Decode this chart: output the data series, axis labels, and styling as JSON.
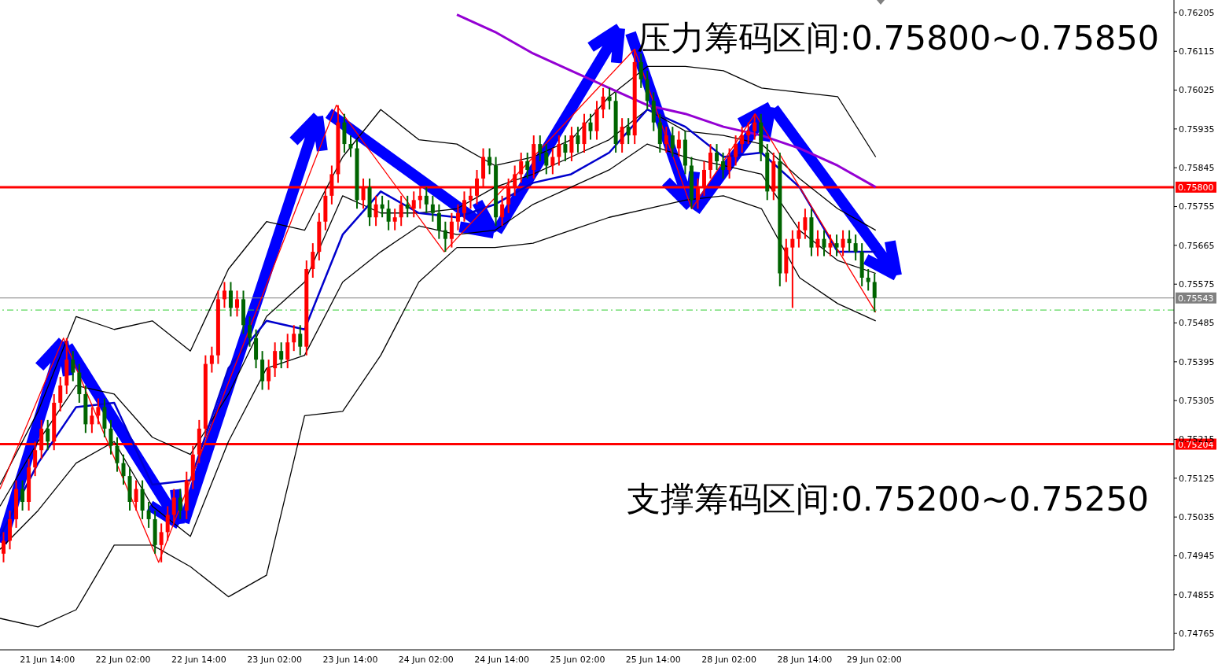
{
  "chart_data": {
    "type": "candlestick",
    "categories": [
      null,
      null,
      null,
      null,
      null,
      null,
      null,
      "21 Jun 14:00",
      null,
      null,
      null,
      null,
      null,
      null,
      null,
      null,
      null,
      null,
      null,
      "22 Jun 02:00",
      null,
      null,
      null,
      null,
      null,
      null,
      null,
      null,
      null,
      null,
      null,
      "22 Jun 14:00",
      null,
      null,
      null,
      null,
      null,
      null,
      null,
      null,
      null,
      null,
      null,
      "23 Jun 02:00",
      null,
      null,
      null,
      null,
      null,
      null,
      null,
      null,
      null,
      null,
      null,
      "23 Jun 14:00",
      null,
      null,
      null,
      null,
      null,
      null,
      null,
      null,
      null,
      null,
      null,
      "24 Jun 02:00",
      null,
      null,
      null,
      null,
      null,
      null,
      null,
      null,
      null,
      null,
      null,
      "24 Jun 14:00",
      null,
      null,
      null,
      null,
      null,
      null,
      null,
      null,
      null,
      null,
      null,
      "25 Jun 02:00",
      null,
      null,
      null,
      null,
      null,
      null,
      null,
      null,
      null,
      null,
      null,
      "25 Jun 14:00",
      null,
      null,
      null,
      null,
      null,
      null,
      null,
      null,
      null,
      null,
      null,
      "28 Jun 02:00",
      null,
      null,
      null,
      null,
      null,
      null,
      null,
      null,
      null,
      null,
      null,
      "28 Jun 14:00",
      null,
      null,
      null,
      null,
      null,
      null,
      null,
      null,
      null,
      null,
      "29 Jun 02:00",
      null,
      null,
      null,
      null,
      null,
      null,
      null,
      null,
      null,
      null,
      null,
      null,
      null,
      null,
      null,
      null,
      null,
      null,
      null,
      null,
      null,
      null,
      null,
      null,
      null,
      null,
      null,
      null,
      null,
      null,
      null,
      null,
      null,
      null,
      null,
      null,
      null,
      null,
      null,
      null,
      null,
      null,
      null,
      null,
      null,
      null,
      null
    ],
    "colors": [
      "#ff0000",
      "#ff0000",
      "#ff0000",
      "#006400",
      "#ff0000",
      "#ff0000",
      "#ff0000",
      "#006400",
      "#ff0000",
      "#ff0000",
      "#ff0000",
      "#006400",
      "#006400",
      "#006400",
      "#ff0000",
      "#ff0000",
      "#006400",
      "#006400",
      "#006400",
      "#006400",
      "#006400",
      "#ff0000",
      "#006400",
      "#006400",
      "#006400",
      "#ff0000",
      "#ff0000",
      "#ff0000",
      "#006400",
      "#ff0000",
      "#ff0000",
      "#ff0000",
      "#ff0000",
      "#ff0000",
      "#ff0000",
      "#ff0000",
      "#006400",
      "#ff0000",
      "#006400",
      "#006400",
      "#006400",
      "#006400",
      "#ff0000",
      "#ff0000",
      "#006400",
      "#ff0000",
      "#ff0000",
      "#006400",
      "#ff0000",
      "#ff0000",
      "#ff0000",
      "#ff0000",
      "#ff0000",
      "#ff0000",
      "#006400",
      "#006400",
      "#006400",
      "#ff0000",
      "#006400",
      "#ff0000",
      "#006400",
      "#006400",
      "#ff0000",
      "#ff0000",
      "#006400",
      "#ff0000",
      "#ff0000",
      "#006400",
      "#006400",
      "#006400",
      "#006400",
      "#ff0000",
      "#ff0000",
      "#ff0000",
      "#ff0000",
      "#ff0000",
      "#ff0000",
      "#006400",
      "#006400",
      "#ff0000",
      "#ff0000",
      "#ff0000",
      "#ff0000",
      "#006400",
      "#ff0000",
      "#006400",
      "#006400",
      "#ff0000",
      "#ff0000",
      "#006400",
      "#ff0000",
      "#006400",
      "#ff0000",
      "#006400",
      "#ff0000",
      "#ff0000",
      "#006400",
      "#006400",
      "#ff0000",
      "#006400",
      "#ff0000",
      "#006400",
      "#006400",
      "#006400",
      "#006400",
      "#ff0000",
      "#006400",
      "#ff0000",
      "#006400",
      "#006400",
      "#ff0000",
      "#ff0000",
      "#ff0000",
      "#006400",
      "#006400",
      "#ff0000",
      "#ff0000",
      "#ff0000",
      "#ff0000",
      "#ff0000",
      "#006400",
      "#006400",
      "#ff0000",
      "#006400",
      "#ff0000",
      "#ff0000",
      "#ff0000",
      "#ff0000",
      "#006400",
      "#ff0000",
      "#006400",
      "#ff0000",
      "#006400",
      "#ff0000",
      "#006400",
      "#006400",
      "#006400",
      "#006400",
      "#006400",
      null,
      null,
      null,
      null,
      null,
      null,
      null,
      null,
      null,
      null,
      null,
      null,
      null,
      null,
      null,
      null,
      null,
      null,
      null,
      null,
      null,
      null,
      null,
      null,
      null,
      null,
      null,
      null,
      null,
      null,
      null,
      null,
      null,
      null,
      null,
      null,
      null,
      null,
      null,
      null,
      null,
      null,
      null,
      null,
      null,
      null,
      null
    ],
    "ohlc": [
      [
        0.7495,
        0.75,
        0.7493,
        0.7498
      ],
      [
        0.7498,
        0.7505,
        0.7496,
        0.7503
      ],
      [
        0.7503,
        0.7512,
        0.7501,
        0.751
      ],
      [
        0.751,
        0.7512,
        0.7505,
        0.7507
      ],
      [
        0.7507,
        0.7517,
        0.7505,
        0.7515
      ],
      [
        0.7515,
        0.7521,
        0.7513,
        0.7519
      ],
      [
        0.7519,
        0.7526,
        0.7517,
        0.7524
      ],
      [
        0.7524,
        0.7526,
        0.7519,
        0.7521
      ],
      [
        0.7521,
        0.7532,
        0.7519,
        0.753
      ],
      [
        0.753,
        0.7536,
        0.7528,
        0.7534
      ],
      [
        0.7534,
        0.7545,
        0.7532,
        0.754
      ],
      [
        0.754,
        0.7542,
        0.7535,
        0.7537
      ],
      [
        0.7537,
        0.7539,
        0.753,
        0.7532
      ],
      [
        0.7532,
        0.7534,
        0.7523,
        0.7525
      ],
      [
        0.7525,
        0.7529,
        0.7523,
        0.7527
      ],
      [
        0.7527,
        0.7531,
        0.7525,
        0.7529
      ],
      [
        0.7529,
        0.7531,
        0.7522,
        0.7524
      ],
      [
        0.7524,
        0.7526,
        0.7518,
        0.752
      ],
      [
        0.752,
        0.7522,
        0.7514,
        0.7516
      ],
      [
        0.7516,
        0.7518,
        0.7511,
        0.7513
      ],
      [
        0.7513,
        0.7515,
        0.7505,
        0.7507
      ],
      [
        0.7507,
        0.7512,
        0.7505,
        0.751
      ],
      [
        0.751,
        0.7512,
        0.7503,
        0.7505
      ],
      [
        0.7505,
        0.7507,
        0.7501,
        0.7503
      ],
      [
        0.7503,
        0.7505,
        0.7495,
        0.7497
      ],
      [
        0.7497,
        0.7502,
        0.7493,
        0.75
      ],
      [
        0.75,
        0.7506,
        0.7498,
        0.7504
      ],
      [
        0.7504,
        0.751,
        0.7502,
        0.7508
      ],
      [
        0.7508,
        0.751,
        0.7503,
        0.7505
      ],
      [
        0.7505,
        0.7514,
        0.7503,
        0.7512
      ],
      [
        0.7512,
        0.752,
        0.751,
        0.7518
      ],
      [
        0.7518,
        0.7526,
        0.7516,
        0.7524
      ],
      [
        0.7524,
        0.7541,
        0.7522,
        0.7539
      ],
      [
        0.7539,
        0.7543,
        0.7537,
        0.7541
      ],
      [
        0.7541,
        0.7556,
        0.7539,
        0.7554
      ],
      [
        0.7554,
        0.7558,
        0.7552,
        0.7556
      ],
      [
        0.7556,
        0.7558,
        0.755,
        0.7552
      ],
      [
        0.7552,
        0.7556,
        0.755,
        0.7554
      ],
      [
        0.7554,
        0.7556,
        0.7546,
        0.7548
      ],
      [
        0.7548,
        0.755,
        0.7543,
        0.7545
      ],
      [
        0.7545,
        0.7547,
        0.7538,
        0.754
      ],
      [
        0.754,
        0.7542,
        0.7533,
        0.7535
      ],
      [
        0.7535,
        0.754,
        0.7533,
        0.7538
      ],
      [
        0.7538,
        0.7544,
        0.7536,
        0.7542
      ],
      [
        0.7542,
        0.7544,
        0.7538,
        0.754
      ],
      [
        0.754,
        0.7546,
        0.7538,
        0.7544
      ],
      [
        0.7544,
        0.7548,
        0.7542,
        0.7546
      ],
      [
        0.7546,
        0.7548,
        0.7541,
        0.7543
      ],
      [
        0.7543,
        0.7563,
        0.7541,
        0.7561
      ],
      [
        0.7561,
        0.7567,
        0.7559,
        0.7565
      ],
      [
        0.7565,
        0.7574,
        0.7563,
        0.7572
      ],
      [
        0.7572,
        0.758,
        0.757,
        0.7578
      ],
      [
        0.7578,
        0.7585,
        0.7576,
        0.7583
      ],
      [
        0.7583,
        0.7599,
        0.7581,
        0.7595
      ],
      [
        0.7595,
        0.7597,
        0.7588,
        0.759
      ],
      [
        0.759,
        0.7592,
        0.7587,
        0.7589
      ],
      [
        0.7589,
        0.7591,
        0.7575,
        0.7577
      ],
      [
        0.7577,
        0.7582,
        0.7575,
        0.758
      ],
      [
        0.758,
        0.7582,
        0.7571,
        0.7573
      ],
      [
        0.7573,
        0.7578,
        0.7571,
        0.7576
      ],
      [
        0.7576,
        0.7578,
        0.7573,
        0.7575
      ],
      [
        0.7575,
        0.7577,
        0.757,
        0.7572
      ],
      [
        0.7572,
        0.7575,
        0.757,
        0.7573
      ],
      [
        0.7573,
        0.7578,
        0.7571,
        0.7576
      ],
      [
        0.7576,
        0.7578,
        0.7573,
        0.7575
      ],
      [
        0.7575,
        0.7579,
        0.7573,
        0.7577
      ],
      [
        0.7577,
        0.758,
        0.7575,
        0.7578
      ],
      [
        0.7578,
        0.758,
        0.7574,
        0.7576
      ],
      [
        0.7576,
        0.7578,
        0.7572,
        0.7574
      ],
      [
        0.7574,
        0.7576,
        0.7568,
        0.757
      ],
      [
        0.757,
        0.7572,
        0.7565,
        0.7568
      ],
      [
        0.7568,
        0.7574,
        0.7566,
        0.7572
      ],
      [
        0.7572,
        0.7576,
        0.757,
        0.7574
      ],
      [
        0.7574,
        0.7579,
        0.7572,
        0.7577
      ],
      [
        0.7577,
        0.758,
        0.7575,
        0.7578
      ],
      [
        0.7578,
        0.7584,
        0.7576,
        0.7582
      ],
      [
        0.7582,
        0.7589,
        0.758,
        0.7587
      ],
      [
        0.7587,
        0.7589,
        0.7583,
        0.7585
      ],
      [
        0.7585,
        0.7587,
        0.7571,
        0.7573
      ],
      [
        0.7573,
        0.7578,
        0.7571,
        0.7576
      ],
      [
        0.7576,
        0.7582,
        0.7574,
        0.758
      ],
      [
        0.758,
        0.7585,
        0.7578,
        0.7583
      ],
      [
        0.7583,
        0.7588,
        0.7581,
        0.7586
      ],
      [
        0.7586,
        0.7588,
        0.7582,
        0.7584
      ],
      [
        0.7584,
        0.7592,
        0.7582,
        0.759
      ],
      [
        0.759,
        0.7592,
        0.7586,
        0.7588
      ],
      [
        0.7588,
        0.759,
        0.7583,
        0.7585
      ],
      [
        0.7585,
        0.7589,
        0.7583,
        0.7587
      ],
      [
        0.7587,
        0.7592,
        0.7585,
        0.759
      ],
      [
        0.759,
        0.7592,
        0.7586,
        0.7588
      ],
      [
        0.7588,
        0.7594,
        0.7586,
        0.7592
      ],
      [
        0.7592,
        0.7594,
        0.7588,
        0.759
      ],
      [
        0.759,
        0.7597,
        0.7588,
        0.7595
      ],
      [
        0.7595,
        0.7597,
        0.7591,
        0.7593
      ],
      [
        0.7593,
        0.76,
        0.7591,
        0.7598
      ],
      [
        0.7598,
        0.7603,
        0.7596,
        0.7601
      ],
      [
        0.7601,
        0.7603,
        0.7598,
        0.76
      ],
      [
        0.76,
        0.7602,
        0.7588,
        0.759
      ],
      [
        0.759,
        0.7596,
        0.7588,
        0.7594
      ],
      [
        0.7594,
        0.7596,
        0.759,
        0.7592
      ],
      [
        0.7592,
        0.7612,
        0.759,
        0.7609
      ],
      [
        0.7609,
        0.7611,
        0.7603,
        0.7605
      ],
      [
        0.7605,
        0.7607,
        0.7598,
        0.76
      ],
      [
        0.76,
        0.7602,
        0.7593,
        0.7595
      ],
      [
        0.7595,
        0.7597,
        0.7588,
        0.759
      ],
      [
        0.759,
        0.7594,
        0.7588,
        0.7592
      ],
      [
        0.7592,
        0.7594,
        0.7587,
        0.7589
      ],
      [
        0.7589,
        0.7593,
        0.7587,
        0.7591
      ],
      [
        0.7591,
        0.7593,
        0.7583,
        0.7585
      ],
      [
        0.7585,
        0.7587,
        0.7575,
        0.7577
      ],
      [
        0.7577,
        0.7582,
        0.7575,
        0.758
      ],
      [
        0.758,
        0.7586,
        0.7578,
        0.7584
      ],
      [
        0.7584,
        0.759,
        0.7582,
        0.7588
      ],
      [
        0.7588,
        0.759,
        0.7584,
        0.7586
      ],
      [
        0.7586,
        0.7588,
        0.7582,
        0.7584
      ],
      [
        0.7584,
        0.7589,
        0.7582,
        0.7587
      ],
      [
        0.7587,
        0.7592,
        0.7585,
        0.759
      ],
      [
        0.759,
        0.7594,
        0.7588,
        0.7592
      ],
      [
        0.7592,
        0.7595,
        0.759,
        0.7593
      ],
      [
        0.7593,
        0.7597,
        0.7591,
        0.7595
      ],
      [
        0.7595,
        0.7597,
        0.7586,
        0.7588
      ],
      [
        0.7588,
        0.759,
        0.7577,
        0.7579
      ],
      [
        0.7579,
        0.7588,
        0.7577,
        0.7586
      ],
      [
        0.7586,
        0.7588,
        0.7557,
        0.756
      ],
      [
        0.756,
        0.7568,
        0.7558,
        0.7566
      ],
      [
        0.7566,
        0.757,
        0.7552,
        0.7568
      ],
      [
        0.7568,
        0.7572,
        0.7566,
        0.757
      ],
      [
        0.757,
        0.7575,
        0.7568,
        0.7573
      ],
      [
        0.7573,
        0.7575,
        0.7564,
        0.7566
      ],
      [
        0.7566,
        0.757,
        0.7564,
        0.7568
      ],
      [
        0.7568,
        0.757,
        0.7564,
        0.7566
      ],
      [
        0.7566,
        0.7569,
        0.7564,
        0.7567
      ],
      [
        0.7567,
        0.7569,
        0.7564,
        0.7566
      ],
      [
        0.7566,
        0.757,
        0.7564,
        0.7568
      ],
      [
        0.7568,
        0.757,
        0.7565,
        0.7567
      ],
      [
        0.7567,
        0.7569,
        0.7563,
        0.7565
      ],
      [
        0.7565,
        0.7567,
        0.7557,
        0.7559
      ],
      [
        0.7559,
        0.7561,
        0.7556,
        0.7558
      ],
      [
        0.7558,
        0.756,
        0.7551,
        0.75543
      ],
      null,
      null,
      null,
      null,
      null,
      null,
      null,
      null,
      null,
      null,
      null,
      null,
      null,
      null,
      null,
      null,
      null,
      null,
      null,
      null,
      null,
      null,
      null,
      null,
      null,
      null,
      null,
      null,
      null,
      null,
      null,
      null,
      null,
      null,
      null,
      null,
      null,
      null,
      null,
      null,
      null,
      null,
      null,
      null,
      null,
      null,
      null
    ],
    "series": [
      {
        "type": "line",
        "color": "#000000",
        "values": [
          0.7511,
          null,
          null,
          null,
          null,
          null,
          0.7528,
          null,
          null,
          null,
          null,
          null,
          0.755,
          null,
          null,
          null,
          null,
          null,
          0.7547,
          null,
          null,
          null,
          null,
          null,
          0.7549,
          null,
          null,
          null,
          null,
          null,
          0.7542,
          null,
          null,
          null,
          null,
          null,
          0.7561,
          null,
          null,
          null,
          null,
          null,
          0.7572,
          null,
          null,
          null,
          null,
          null,
          0.757,
          null,
          null,
          null,
          null,
          null,
          0.7587,
          null,
          null,
          null,
          null,
          null,
          0.7598,
          null,
          null,
          null,
          null,
          null,
          0.7591,
          null,
          null,
          null,
          null,
          null,
          0.759,
          null,
          null,
          null,
          null,
          null,
          0.7585,
          null,
          null,
          null,
          null,
          null,
          0.7587,
          null,
          null,
          null,
          null,
          null,
          0.7591,
          null,
          null,
          null,
          null,
          null,
          0.7601,
          null,
          null,
          null,
          null,
          null,
          0.7608,
          null,
          null,
          null,
          null,
          null,
          0.7608,
          null,
          null,
          null,
          null,
          null,
          0.7607,
          null,
          null,
          null,
          null,
          null,
          0.7603,
          null,
          null,
          null,
          null,
          null,
          0.7602,
          null,
          null,
          null,
          null,
          null,
          0.7601,
          null,
          null,
          null,
          null,
          null,
          0.7587,
          null,
          null,
          null,
          null,
          null,
          null,
          null,
          null,
          null,
          null,
          null,
          null,
          null,
          null,
          null,
          null,
          null,
          null,
          null,
          null,
          null,
          null,
          null,
          null,
          null,
          null,
          null,
          null,
          null,
          null,
          null,
          null,
          null,
          null,
          null,
          null,
          null,
          null,
          null,
          null,
          null,
          null,
          null,
          null,
          null,
          null,
          null
        ]
      },
      {
        "type": "line",
        "color": "#000000",
        "values": [
          0.748,
          null,
          null,
          null,
          null,
          null,
          0.7478,
          null,
          null,
          null,
          null,
          null,
          0.7482,
          null,
          null,
          null,
          null,
          null,
          0.7497,
          null,
          null,
          null,
          null,
          null,
          0.7497,
          null,
          null,
          null,
          null,
          null,
          0.7492,
          null,
          null,
          null,
          null,
          null,
          0.7485,
          null,
          null,
          null,
          null,
          null,
          0.749,
          null,
          null,
          null,
          null,
          null,
          0.7527,
          null,
          null,
          null,
          null,
          null,
          0.7528,
          null,
          null,
          null,
          null,
          null,
          0.7541,
          null,
          null,
          null,
          null,
          null,
          0.7558,
          null,
          null,
          null,
          null,
          null,
          0.7566,
          null,
          null,
          null,
          null,
          null,
          0.7566,
          null,
          null,
          null,
          null,
          null,
          0.7567,
          null,
          null,
          null,
          null,
          null,
          0.757,
          null,
          null,
          null,
          null,
          null,
          0.7573,
          null,
          null,
          null,
          null,
          null,
          0.7575,
          null,
          null,
          null,
          null,
          null,
          0.7577,
          null,
          null,
          null,
          null,
          null,
          0.7578,
          null,
          null,
          null,
          null,
          null,
          0.7575,
          null,
          null,
          null,
          null,
          null,
          0.7559,
          null,
          null,
          null,
          null,
          null,
          0.7553,
          null,
          null,
          null,
          null,
          null,
          0.7549,
          null,
          null,
          null,
          null,
          null,
          null,
          null,
          null,
          null,
          null,
          null,
          null,
          null,
          null,
          null,
          null,
          null,
          null,
          null,
          null,
          null,
          null,
          null,
          null,
          null,
          null,
          null,
          null,
          null,
          null,
          null,
          null,
          null,
          null,
          null,
          null,
          null,
          null,
          null,
          null,
          null,
          null,
          null,
          null,
          null,
          null,
          null
        ]
      },
      {
        "type": "line",
        "color": "#000000",
        "values": [
          0.7506,
          null,
          null,
          null,
          null,
          null,
          0.7521,
          null,
          null,
          null,
          null,
          null,
          0.7534,
          null,
          null,
          null,
          null,
          null,
          0.7532,
          null,
          null,
          null,
          null,
          null,
          0.7522,
          null,
          null,
          null,
          null,
          null,
          0.7518,
          null,
          null,
          null,
          null,
          null,
          0.7532,
          null,
          null,
          null,
          null,
          null,
          0.755,
          null,
          null,
          null,
          null,
          null,
          0.7558,
          null,
          null,
          null,
          null,
          null,
          0.7578,
          null,
          null,
          null,
          null,
          null,
          0.7574,
          null,
          null,
          null,
          null,
          null,
          0.7574,
          null,
          null,
          null,
          null,
          null,
          0.7575,
          null,
          null,
          null,
          null,
          null,
          0.758,
          null,
          null,
          null,
          null,
          null,
          0.7583,
          null,
          null,
          null,
          null,
          null,
          0.7587,
          null,
          null,
          null,
          null,
          null,
          0.7591,
          null,
          null,
          null,
          null,
          null,
          0.7598,
          null,
          null,
          null,
          null,
          null,
          0.7593,
          null,
          null,
          null,
          null,
          null,
          0.7592,
          null,
          null,
          null,
          null,
          null,
          0.759,
          null,
          null,
          null,
          null,
          null,
          0.7582,
          null,
          null,
          null,
          null,
          null,
          0.7575,
          null,
          null,
          null,
          null,
          null,
          0.757,
          null,
          null,
          null,
          null,
          null,
          null,
          null,
          null,
          null,
          null,
          null,
          null,
          null,
          null,
          null,
          null,
          null,
          null,
          null,
          null,
          null,
          null,
          null,
          null,
          null,
          null,
          null,
          null,
          null,
          null,
          null,
          null,
          null,
          null,
          null,
          null,
          null,
          null,
          null,
          null,
          null,
          null,
          null,
          null,
          null,
          null,
          null
        ]
      },
      {
        "type": "line",
        "color": "#000000",
        "values": [
          0.7496,
          null,
          null,
          null,
          null,
          null,
          0.7505,
          null,
          null,
          null,
          null,
          null,
          0.7516,
          null,
          null,
          null,
          null,
          null,
          0.7521,
          null,
          null,
          null,
          null,
          null,
          0.7506,
          null,
          null,
          null,
          null,
          null,
          0.7499,
          null,
          null,
          null,
          null,
          null,
          0.7521,
          null,
          null,
          null,
          null,
          null,
          0.7538,
          null,
          null,
          null,
          null,
          null,
          0.7541,
          null,
          null,
          null,
          null,
          null,
          0.7558,
          null,
          null,
          null,
          null,
          null,
          0.7565,
          null,
          null,
          null,
          null,
          null,
          0.7571,
          null,
          null,
          null,
          null,
          null,
          0.7569,
          null,
          null,
          null,
          null,
          null,
          0.757,
          null,
          null,
          null,
          null,
          null,
          0.7576,
          null,
          null,
          null,
          null,
          null,
          0.758,
          null,
          null,
          null,
          null,
          null,
          0.7584,
          null,
          null,
          null,
          null,
          null,
          0.759,
          null,
          null,
          null,
          null,
          null,
          0.7587,
          null,
          null,
          null,
          null,
          null,
          0.7585,
          null,
          null,
          null,
          null,
          null,
          0.7583,
          null,
          null,
          null,
          null,
          null,
          0.757,
          null,
          null,
          null,
          null,
          null,
          0.7563,
          null,
          null,
          null,
          null,
          null,
          0.756,
          null,
          null,
          null,
          null,
          null,
          null,
          null,
          null,
          null,
          null,
          null,
          null,
          null,
          null,
          null,
          null,
          null,
          null,
          null,
          null,
          null,
          null,
          null,
          null,
          null,
          null,
          null,
          null,
          null,
          null,
          null,
          null,
          null,
          null,
          null,
          null,
          null,
          null,
          null,
          null,
          null,
          null,
          null,
          null,
          null,
          null,
          null
        ]
      },
      {
        "type": "line",
        "color": "#0000cd",
        "values": [
          0.7499,
          null,
          null,
          null,
          null,
          null,
          0.7516,
          null,
          null,
          null,
          null,
          null,
          0.7529,
          null,
          null,
          null,
          null,
          null,
          0.753,
          null,
          null,
          null,
          null,
          null,
          0.7511,
          null,
          null,
          null,
          null,
          null,
          0.7512,
          null,
          null,
          null,
          null,
          null,
          0.7538,
          null,
          null,
          null,
          null,
          null,
          0.7549,
          null,
          null,
          null,
          null,
          null,
          0.7547,
          null,
          null,
          null,
          null,
          null,
          0.7569,
          null,
          null,
          null,
          null,
          null,
          0.7579,
          null,
          null,
          null,
          null,
          null,
          0.7574,
          null,
          null,
          null,
          null,
          null,
          0.7573,
          null,
          null,
          null,
          null,
          null,
          0.7576,
          null,
          null,
          null,
          null,
          null,
          0.7581,
          null,
          null,
          null,
          null,
          null,
          0.7583,
          null,
          null,
          null,
          null,
          null,
          0.7588,
          null,
          null,
          null,
          null,
          null,
          0.7598,
          null,
          null,
          null,
          null,
          null,
          0.7594,
          null,
          null,
          null,
          null,
          null,
          0.7587,
          null,
          null,
          null,
          null,
          null,
          0.7588,
          null,
          null,
          null,
          null,
          null,
          0.758,
          null,
          null,
          null,
          null,
          null,
          0.7565,
          null,
          null,
          null,
          null,
          null,
          0.7565,
          null,
          null,
          null,
          null,
          null,
          null,
          null,
          null,
          null,
          null,
          null,
          null,
          null,
          null,
          null,
          null,
          null,
          null,
          null,
          null,
          null,
          null,
          null,
          null,
          null,
          null,
          null,
          null,
          null,
          null,
          null,
          null,
          null,
          null,
          null,
          null,
          null,
          null,
          null,
          null,
          null,
          null,
          null,
          null,
          null,
          null,
          null
        ]
      },
      {
        "type": "line",
        "color": "#9400d3",
        "values": [
          null,
          null,
          null,
          null,
          null,
          null,
          null,
          null,
          null,
          null,
          null,
          null,
          null,
          null,
          null,
          null,
          null,
          null,
          null,
          null,
          null,
          null,
          null,
          null,
          null,
          null,
          null,
          null,
          null,
          null,
          null,
          null,
          null,
          null,
          null,
          null,
          null,
          null,
          null,
          null,
          null,
          null,
          null,
          null,
          null,
          null,
          null,
          null,
          null,
          null,
          null,
          null,
          null,
          null,
          null,
          null,
          null,
          null,
          null,
          null,
          null,
          null,
          null,
          null,
          null,
          null,
          null,
          null,
          null,
          null,
          null,
          null,
          0.762,
          null,
          null,
          null,
          null,
          null,
          0.7616,
          null,
          null,
          null,
          null,
          null,
          0.7611,
          null,
          null,
          null,
          null,
          null,
          0.7607,
          null,
          null,
          null,
          null,
          null,
          0.7603,
          null,
          null,
          null,
          null,
          null,
          0.7599,
          null,
          null,
          null,
          null,
          null,
          0.7597,
          null,
          null,
          null,
          null,
          null,
          0.7594,
          null,
          null,
          null,
          null,
          null,
          0.7592,
          null,
          null,
          null,
          null,
          null,
          0.7589,
          null,
          null,
          null,
          null,
          null,
          0.7585,
          null,
          null,
          null,
          null,
          null,
          0.758,
          null,
          null,
          null,
          null,
          null,
          null,
          null,
          null,
          null,
          null,
          null,
          null,
          null,
          null,
          null,
          null,
          null,
          null,
          null,
          null,
          null,
          null,
          null,
          null,
          null,
          null,
          null,
          null,
          null,
          null,
          null,
          null,
          null,
          null,
          null,
          null,
          null,
          null,
          null,
          null,
          null,
          null,
          null,
          null,
          null,
          null,
          null
        ]
      },
      {
        "type": "line",
        "color": "#ff0000",
        "values": [
          0.751,
          null,
          null,
          null,
          null,
          null,
          null,
          null,
          null,
          null,
          0.7545,
          null,
          null,
          null,
          null,
          null,
          null,
          null,
          null,
          null,
          null,
          null,
          null,
          null,
          null,
          0.7493,
          null,
          null,
          null,
          null,
          null,
          null,
          null,
          null,
          null,
          null,
          null,
          null,
          null,
          null,
          null,
          null,
          null,
          null,
          null,
          null,
          null,
          null,
          null,
          null,
          null,
          null,
          null,
          0.7599,
          null,
          null,
          null,
          null,
          null,
          null,
          null,
          null,
          null,
          null,
          null,
          null,
          null,
          null,
          null,
          null,
          0.7565,
          null,
          null,
          null,
          null,
          null,
          null,
          null,
          null,
          null,
          null,
          null,
          null,
          null,
          null,
          null,
          null,
          null,
          null,
          null,
          null,
          null,
          null,
          null,
          null,
          null,
          null,
          null,
          null,
          null,
          0.7612,
          null,
          null,
          null,
          null,
          null,
          null,
          null,
          null,
          0.7575,
          null,
          null,
          null,
          null,
          null,
          null,
          null,
          null,
          null,
          0.7597,
          null,
          null,
          null,
          null,
          null,
          null,
          null,
          null,
          null,
          null,
          null,
          null,
          null,
          null,
          null,
          null,
          null,
          null,
          0.7551,
          null,
          null,
          null,
          null,
          null,
          null,
          null,
          null,
          null,
          null,
          null,
          null,
          null,
          null,
          null,
          null,
          null,
          null,
          null,
          null,
          null,
          null,
          null,
          null,
          null,
          null,
          null,
          null,
          null,
          null,
          null,
          null,
          null,
          null,
          null,
          null,
          null,
          null,
          null,
          null,
          null,
          null,
          null,
          null,
          null,
          null,
          null
        ]
      }
    ],
    "ylim": [
      0.74727,
      0.76234
    ],
    "yticks": [
      0.74765,
      0.74855,
      0.74945,
      0.75035,
      0.75125,
      0.75215,
      0.75305,
      0.75395,
      0.75485,
      0.75575,
      0.75665,
      0.75755,
      0.75845,
      0.75935,
      0.76025,
      0.76115,
      0.76205
    ],
    "ref_lines": [
      {
        "axis": "y",
        "value": 0.758,
        "label": "0.75800",
        "color": "#ff0000"
      },
      {
        "axis": "y",
        "value": 0.75204,
        "label": "0.75204",
        "color": "#ff0000"
      },
      {
        "axis": "y",
        "value": 0.75543,
        "label": "0.75543",
        "color": "#808080"
      },
      {
        "axis": "y",
        "value": 0.75515,
        "color": "#32cd32",
        "line_style": "dashed"
      }
    ],
    "annotations": [
      "压力筹码区间:0.75800~0.75850",
      "支撑筹码区间:0.75200~0.75250"
    ],
    "grid": false,
    "legend": false
  }
}
